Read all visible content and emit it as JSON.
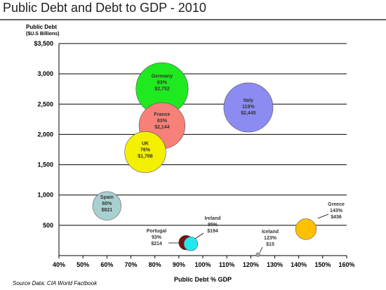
{
  "title": "Public Debt and Debt to GDP - 2010",
  "source": "Source Data:  CIA World Factbook",
  "colors": {
    "title_rule": "#666666",
    "grid": "#000000",
    "Germany": "#1fea1f",
    "France": "#f78078",
    "Italy": "#8b8bf2",
    "UK": "#f3f000",
    "Spain": "#a8d0d0",
    "Portugal": "#7a1010",
    "Ireland": "#22e8ee",
    "Iceland": "#a8a8a8",
    "Greece": "#ffc000"
  },
  "chart_data": {
    "type": "bubble",
    "xlabel": "Public Debt % GDP",
    "ylabel": "Public Debt\n($U.S Billions)",
    "xlim": [
      40,
      160
    ],
    "ylim": [
      0,
      3500
    ],
    "x_ticks": [
      40,
      50,
      60,
      70,
      80,
      90,
      100,
      110,
      120,
      130,
      140,
      150,
      160
    ],
    "x_tick_labels": [
      "40%",
      "50%",
      "60%",
      "70%",
      "80%",
      "90%",
      "100%",
      "110%",
      "120%",
      "130%",
      "140%",
      "150%",
      "160%"
    ],
    "y_ticks": [
      500,
      1000,
      1500,
      2000,
      2500,
      3000,
      3500
    ],
    "y_tick_labels": [
      "500",
      "1,000",
      "1,500",
      "2,000",
      "2,500",
      "3,000",
      "$3,500"
    ],
    "grid": "horizontal",
    "points": [
      {
        "name": "Germany",
        "x": 83,
        "y": 2752,
        "pct_label": "83%",
        "debt_label": "$2,752"
      },
      {
        "name": "Italy",
        "x": 119,
        "y": 2445,
        "pct_label": "119%",
        "debt_label": "$2,445"
      },
      {
        "name": "France",
        "x": 83,
        "y": 2144,
        "pct_label": "83%",
        "debt_label": "$2,144"
      },
      {
        "name": "UK",
        "x": 76,
        "y": 1708,
        "pct_label": "76%",
        "debt_label": "$1,708"
      },
      {
        "name": "Spain",
        "x": 60,
        "y": 821,
        "pct_label": "60%",
        "debt_label": "$821"
      },
      {
        "name": "Greece",
        "x": 143,
        "y": 436,
        "pct_label": "143%",
        "debt_label": "$436"
      },
      {
        "name": "Portugal",
        "x": 93,
        "y": 214,
        "pct_label": "93%",
        "debt_label": "$214"
      },
      {
        "name": "Ireland",
        "x": 95,
        "y": 194,
        "pct_label": "95%",
        "debt_label": "$194"
      },
      {
        "name": "Iceland",
        "x": 123,
        "y": 15,
        "pct_label": "123%",
        "debt_label": "$15"
      }
    ]
  }
}
